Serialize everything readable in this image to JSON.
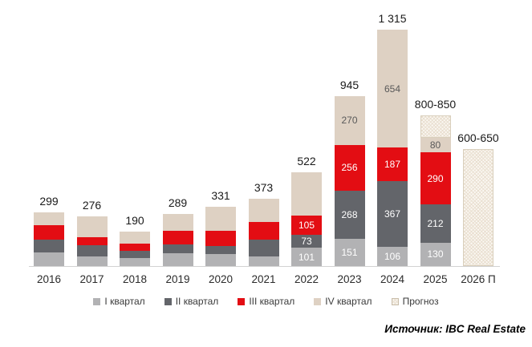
{
  "chart_data": {
    "type": "bar",
    "stacked": true,
    "title": "",
    "xlabel": "",
    "ylabel": "",
    "grid": false,
    "legend_position": "bottom",
    "ylim": [
      0,
      1400
    ],
    "categories": [
      "2016",
      "2017",
      "2018",
      "2019",
      "2020",
      "2021",
      "2022",
      "2023",
      "2024",
      "2025",
      "2026 П"
    ],
    "totals": [
      "299",
      "276",
      "190",
      "289",
      "331",
      "373",
      "522",
      "945",
      "1 315",
      "800-850",
      "600-650"
    ],
    "series": [
      {
        "key": "q1",
        "name": "I квартал",
        "color": "#b2b2b4",
        "label_color": "#ffffff",
        "values": [
          78,
          52,
          45,
          70,
          65,
          52,
          101,
          151,
          106,
          130,
          0
        ],
        "labels": [
          null,
          null,
          null,
          null,
          null,
          null,
          "101",
          "151",
          "106",
          "130",
          null
        ]
      },
      {
        "key": "q2",
        "name": "II квартал",
        "color": "#63656a",
        "label_color": "#ffffff",
        "values": [
          69,
          65,
          40,
          50,
          45,
          95,
          73,
          268,
          367,
          212,
          0
        ],
        "labels": [
          null,
          null,
          null,
          null,
          null,
          null,
          "73",
          "268",
          "367",
          "212",
          null
        ]
      },
      {
        "key": "q3",
        "name": "III квартал",
        "color": "#e30d13",
        "label_color": "#ffffff",
        "values": [
          82,
          43,
          42,
          75,
          87,
          100,
          105,
          256,
          187,
          290,
          0
        ],
        "labels": [
          null,
          null,
          null,
          null,
          null,
          null,
          "105",
          "256",
          "187",
          "290",
          null
        ]
      },
      {
        "key": "q4",
        "name": "IV квартал",
        "color": "#ded1c3",
        "label_color": "#595959",
        "values": [
          70,
          116,
          63,
          94,
          134,
          126,
          243,
          270,
          654,
          80,
          0
        ],
        "labels": [
          null,
          null,
          null,
          null,
          null,
          null,
          null,
          "270",
          "654",
          "80",
          null
        ]
      },
      {
        "key": "forecast",
        "name": "Прогноз",
        "color": "hatch",
        "label_color": "#595959",
        "values": [
          0,
          0,
          0,
          0,
          0,
          0,
          0,
          0,
          0,
          125,
          650
        ],
        "labels": [
          null,
          null,
          null,
          null,
          null,
          null,
          null,
          null,
          null,
          null,
          null
        ]
      }
    ]
  },
  "legend": {
    "items": [
      "I квартал",
      "II квартал",
      "III квартал",
      "IV квартал",
      "Прогноз"
    ]
  },
  "source": "Источник: IBC Real Estate"
}
